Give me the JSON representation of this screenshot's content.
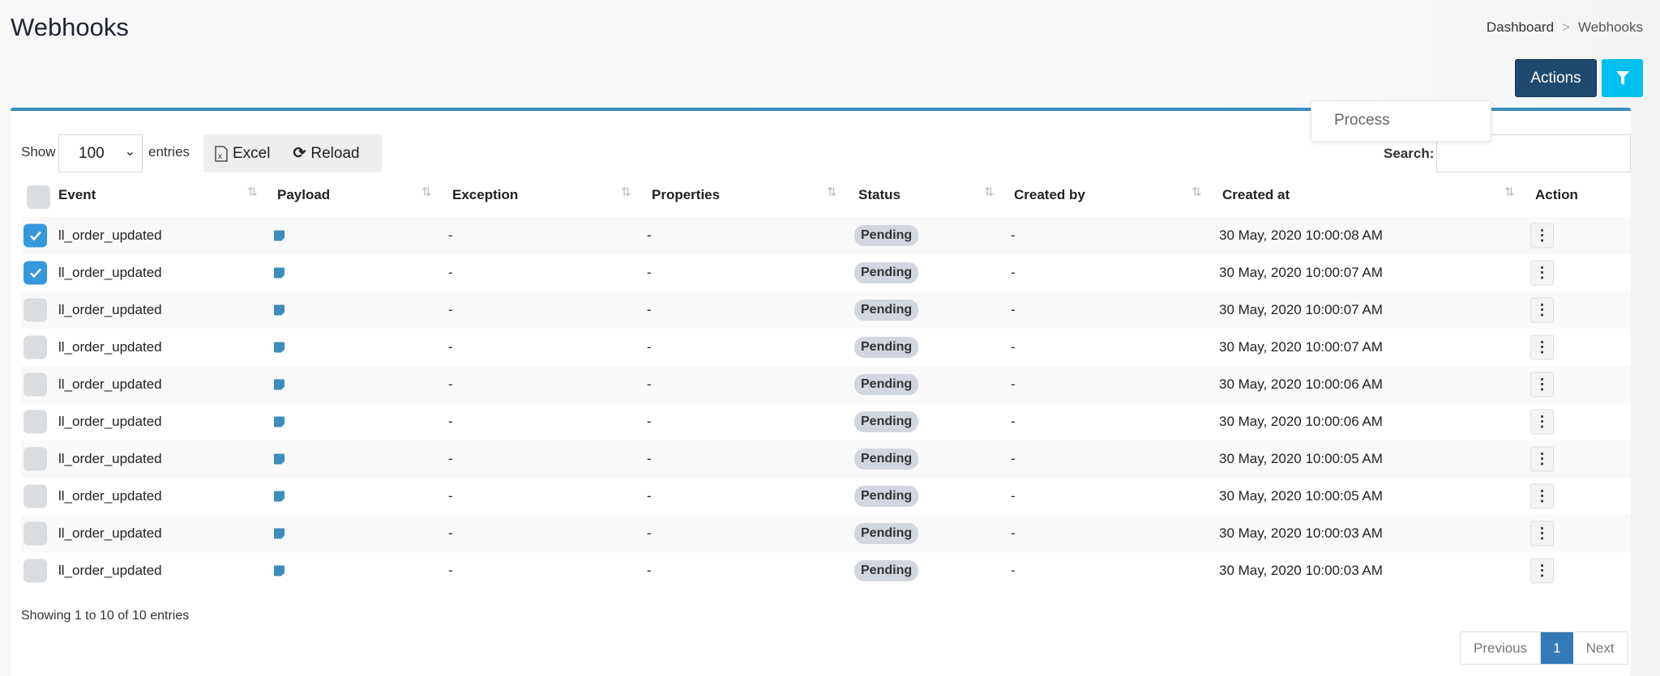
{
  "header": {
    "title": "Webhooks",
    "breadcrumb": [
      "Dashboard",
      "Webhooks"
    ],
    "breadcrumb_sep": ">",
    "actions_label": "Actions",
    "filter_icon": "filter-icon"
  },
  "actions_menu": {
    "items": [
      "Process"
    ]
  },
  "controls": {
    "show_label": "Show",
    "entries_value": "100",
    "entries_label": "entries",
    "excel_label": "Excel",
    "reload_label": "Reload",
    "search_label": "Search:",
    "search_value": ""
  },
  "table": {
    "columns": [
      "Event",
      "Payload",
      "Exception",
      "Properties",
      "Status",
      "Created by",
      "Created at",
      "Action"
    ],
    "rows": [
      {
        "checked": true,
        "event": "ll_order_updated",
        "exception": "-",
        "properties": "-",
        "status": "Pending",
        "created_by": "-",
        "created_at": "30 May, 2020 10:00:08 AM"
      },
      {
        "checked": true,
        "event": "ll_order_updated",
        "exception": "-",
        "properties": "-",
        "status": "Pending",
        "created_by": "-",
        "created_at": "30 May, 2020 10:00:07 AM"
      },
      {
        "checked": false,
        "event": "ll_order_updated",
        "exception": "-",
        "properties": "-",
        "status": "Pending",
        "created_by": "-",
        "created_at": "30 May, 2020 10:00:07 AM"
      },
      {
        "checked": false,
        "event": "ll_order_updated",
        "exception": "-",
        "properties": "-",
        "status": "Pending",
        "created_by": "-",
        "created_at": "30 May, 2020 10:00:07 AM"
      },
      {
        "checked": false,
        "event": "ll_order_updated",
        "exception": "-",
        "properties": "-",
        "status": "Pending",
        "created_by": "-",
        "created_at": "30 May, 2020 10:00:06 AM"
      },
      {
        "checked": false,
        "event": "ll_order_updated",
        "exception": "-",
        "properties": "-",
        "status": "Pending",
        "created_by": "-",
        "created_at": "30 May, 2020 10:00:06 AM"
      },
      {
        "checked": false,
        "event": "ll_order_updated",
        "exception": "-",
        "properties": "-",
        "status": "Pending",
        "created_by": "-",
        "created_at": "30 May, 2020 10:00:05 AM"
      },
      {
        "checked": false,
        "event": "ll_order_updated",
        "exception": "-",
        "properties": "-",
        "status": "Pending",
        "created_by": "-",
        "created_at": "30 May, 2020 10:00:05 AM"
      },
      {
        "checked": false,
        "event": "ll_order_updated",
        "exception": "-",
        "properties": "-",
        "status": "Pending",
        "created_by": "-",
        "created_at": "30 May, 2020 10:00:03 AM"
      },
      {
        "checked": false,
        "event": "ll_order_updated",
        "exception": "-",
        "properties": "-",
        "status": "Pending",
        "created_by": "-",
        "created_at": "30 May, 2020 10:00:03 AM"
      }
    ]
  },
  "footer": {
    "info": "Showing 1 to 10 of 10 entries",
    "previous": "Previous",
    "current_page": "1",
    "next": "Next"
  },
  "colors": {
    "primary": "#1f4a70",
    "filter": "#00c0ef",
    "accent": "#3c8dbc",
    "checkbox": "#3498db"
  }
}
